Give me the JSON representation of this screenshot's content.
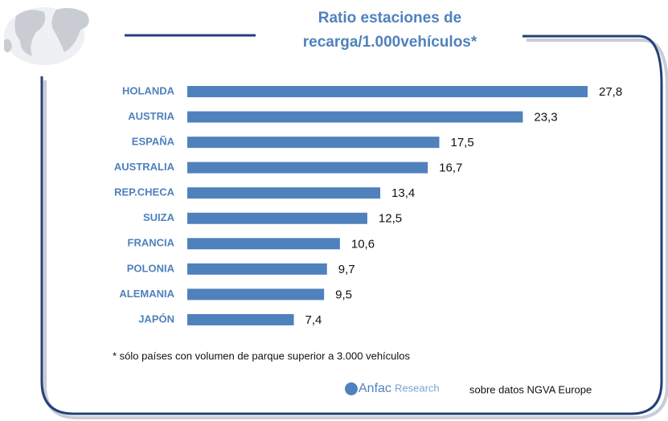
{
  "chart_data": {
    "type": "bar",
    "orientation": "horizontal",
    "title": "Ratio estaciones de recarga/1.000vehículos*",
    "categories": [
      "HOLANDA",
      "AUSTRIA",
      "ESPAÑA",
      "AUSTRALIA",
      "REP.CHECA",
      "SUIZA",
      "FRANCIA",
      "POLONIA",
      "ALEMANIA",
      "JAPÓN"
    ],
    "values": [
      27.8,
      23.3,
      17.5,
      16.7,
      13.4,
      12.5,
      10.6,
      9.7,
      9.5,
      7.4
    ],
    "value_labels": [
      "27,8",
      "23,3",
      "17,5",
      "16,7",
      "13,4",
      "12,5",
      "10,6",
      "9,7",
      "9,5",
      "7,4"
    ],
    "color": "#4f81bd",
    "footnote": "* sólo países con volumen de parque superior a 3.000 vehículos",
    "logo": {
      "name": "Anfac",
      "sub": "Research"
    },
    "source": "sobre datos NGVA Europe"
  }
}
